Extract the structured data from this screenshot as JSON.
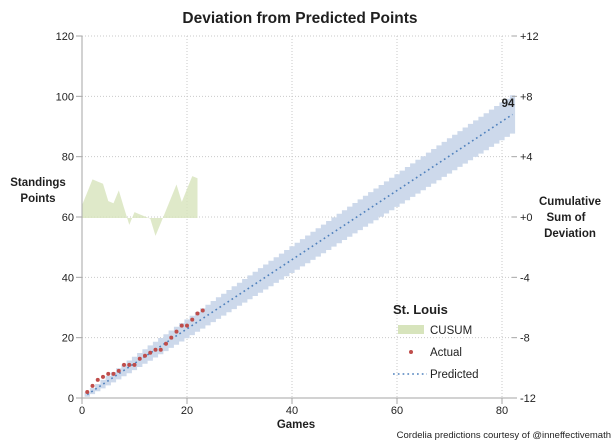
{
  "title": "Deviation from Predicted Points",
  "caption": "Cordelia predictions courtesy of @inneffectivemath",
  "annotation": {
    "final_predicted_label": "94"
  },
  "axes": {
    "left": {
      "title_lines": [
        "Standings",
        "Points"
      ],
      "ticks": [
        "120",
        "100",
        "80",
        "60",
        "40",
        "20",
        "0"
      ]
    },
    "right": {
      "title_lines": [
        "Cumulative",
        "Sum of",
        "Deviation"
      ],
      "ticks": [
        "+12",
        "+8",
        "+4",
        "+0",
        "-4",
        "-8",
        "-12"
      ]
    },
    "bottom": {
      "title": "Games",
      "ticks": [
        "0",
        "20",
        "40",
        "60",
        "80"
      ]
    }
  },
  "legend": {
    "title": "St. Louis",
    "items": [
      {
        "label": "CUSUM",
        "type": "area"
      },
      {
        "label": "Actual",
        "type": "dot"
      },
      {
        "label": "Predicted",
        "type": "line"
      }
    ]
  },
  "colors": {
    "band": "#cdd9eb",
    "predicted": "#4f81bd",
    "actual": "#bf4d4b",
    "cusum": "#d7e4bc",
    "grid": "#c9c9c9",
    "axis": "#a6a6a6",
    "label_94": "#4f81bd",
    "caption_text": "#17365d"
  },
  "chart_data": {
    "type": "combo",
    "title": "Deviation from Predicted Points",
    "xlabel": "Games",
    "ylabel_left": "Standings Points",
    "ylabel_right": "Cumulative Sum of Deviation",
    "x_range": [
      0,
      82
    ],
    "y_left_range": [
      0,
      120
    ],
    "y_right_range": [
      -12,
      12
    ],
    "grid": true,
    "legend_position": "inside-lower-right",
    "team": "St. Louis",
    "games_played": 23,
    "series": [
      {
        "name": "CUSUM",
        "type": "area",
        "axis": "right",
        "games": [
          1,
          2,
          3,
          4,
          5,
          6,
          7,
          8,
          9,
          10,
          11,
          12,
          13,
          14,
          15,
          16,
          17,
          18,
          19,
          20,
          21,
          22,
          23
        ],
        "values": [
          0.85,
          1.71,
          2.56,
          2.41,
          2.27,
          1.12,
          0.98,
          1.83,
          0.68,
          -0.46,
          0.39,
          0.24,
          0.1,
          -0.05,
          -1.19,
          -0.34,
          0.51,
          1.37,
          2.22,
          1.07,
          1.93,
          2.78,
          2.64
        ]
      },
      {
        "name": "Actual",
        "type": "scatter",
        "axis": "left",
        "games": [
          1,
          2,
          3,
          4,
          5,
          6,
          7,
          8,
          9,
          10,
          11,
          12,
          13,
          14,
          15,
          16,
          17,
          18,
          19,
          20,
          21,
          22,
          23
        ],
        "values": [
          2,
          4,
          6,
          7,
          8,
          8,
          9,
          11,
          11,
          11,
          13,
          14,
          15,
          16,
          16,
          18,
          20,
          22,
          24,
          24,
          26,
          28,
          29
        ]
      },
      {
        "name": "Predicted",
        "type": "line",
        "axis": "left",
        "start_game": 1,
        "end_game": 82,
        "points_per_game": 1.1463,
        "final_value": 94
      },
      {
        "name": "Prediction band",
        "type": "band",
        "axis": "left",
        "start_game": 1,
        "end_game": 82,
        "per_game": 1.1463,
        "halfwidth_coeff": 0.7,
        "final_upper": 100,
        "final_lower": 88
      }
    ]
  }
}
